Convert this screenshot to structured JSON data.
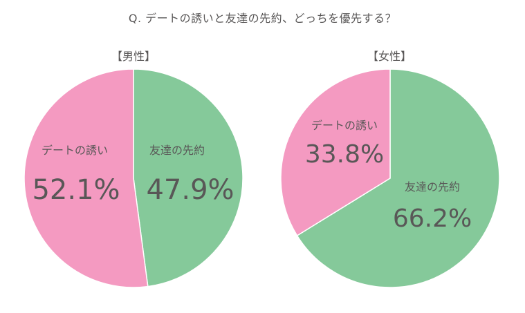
{
  "title": "Q. デートの誘いと友達の先約、どっちを優先する？",
  "colors": {
    "date_invite": "#f49ac1",
    "friend_plan": "#85c99a",
    "text": "#595757",
    "divider": "#ffffff"
  },
  "chart_data": [
    {
      "type": "pie",
      "title": "【男性】",
      "slices": [
        {
          "label": "友達の先約",
          "value": 47.9,
          "display": "47.9%",
          "color": "#85c99a"
        },
        {
          "label": "デートの誘い",
          "value": 52.1,
          "display": "52.1%",
          "color": "#f49ac1"
        }
      ]
    },
    {
      "type": "pie",
      "title": "【女性】",
      "slices": [
        {
          "label": "友達の先約",
          "value": 66.2,
          "display": "66.2%",
          "color": "#85c99a"
        },
        {
          "label": "デートの誘い",
          "value": 33.8,
          "display": "33.8%",
          "color": "#f49ac1"
        }
      ]
    }
  ]
}
